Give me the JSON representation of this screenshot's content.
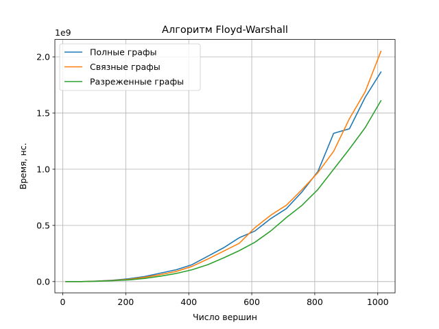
{
  "chart_data": {
    "type": "line",
    "title": "Алгоритм Floyd-Warshall",
    "xlabel": "Число вершин",
    "ylabel": "Время, нс.",
    "y_multiplier_label": "1e9",
    "xlim": [
      -25,
      1055
    ],
    "ylim": [
      -0.1,
      2.155
    ],
    "x_ticks": [
      0,
      200,
      400,
      600,
      800,
      1000
    ],
    "x_tick_labels": [
      "0",
      "200",
      "400",
      "600",
      "800",
      "1000"
    ],
    "y_ticks": [
      0.0,
      0.5,
      1.0,
      1.5,
      2.0
    ],
    "y_tick_labels": [
      "0.0",
      "0.5",
      "1.0",
      "1.5",
      "2.0"
    ],
    "grid": true,
    "legend_position": "top-left",
    "x": [
      10,
      60,
      110,
      160,
      210,
      260,
      310,
      360,
      410,
      460,
      510,
      560,
      610,
      660,
      710,
      760,
      810,
      860,
      910,
      960,
      1010
    ],
    "series": [
      {
        "name": "Полные графы",
        "color": "#1f77b4",
        "values": [
          0.0,
          0.0,
          0.005,
          0.012,
          0.025,
          0.045,
          0.075,
          0.105,
          0.15,
          0.225,
          0.3,
          0.39,
          0.45,
          0.56,
          0.65,
          0.8,
          0.98,
          1.32,
          1.36,
          1.64,
          1.865
        ]
      },
      {
        "name": "Связные графы",
        "color": "#ff7f0e",
        "values": [
          0.0,
          0.0,
          0.004,
          0.01,
          0.02,
          0.038,
          0.062,
          0.09,
          0.135,
          0.2,
          0.27,
          0.34,
          0.48,
          0.59,
          0.68,
          0.82,
          0.97,
          1.16,
          1.45,
          1.69,
          2.05
        ]
      },
      {
        "name": "Разреженные графы",
        "color": "#2ca02c",
        "values": [
          0.0,
          0.0,
          0.003,
          0.008,
          0.015,
          0.028,
          0.048,
          0.072,
          0.105,
          0.15,
          0.21,
          0.275,
          0.35,
          0.45,
          0.57,
          0.68,
          0.82,
          1.0,
          1.18,
          1.37,
          1.61
        ]
      }
    ]
  }
}
